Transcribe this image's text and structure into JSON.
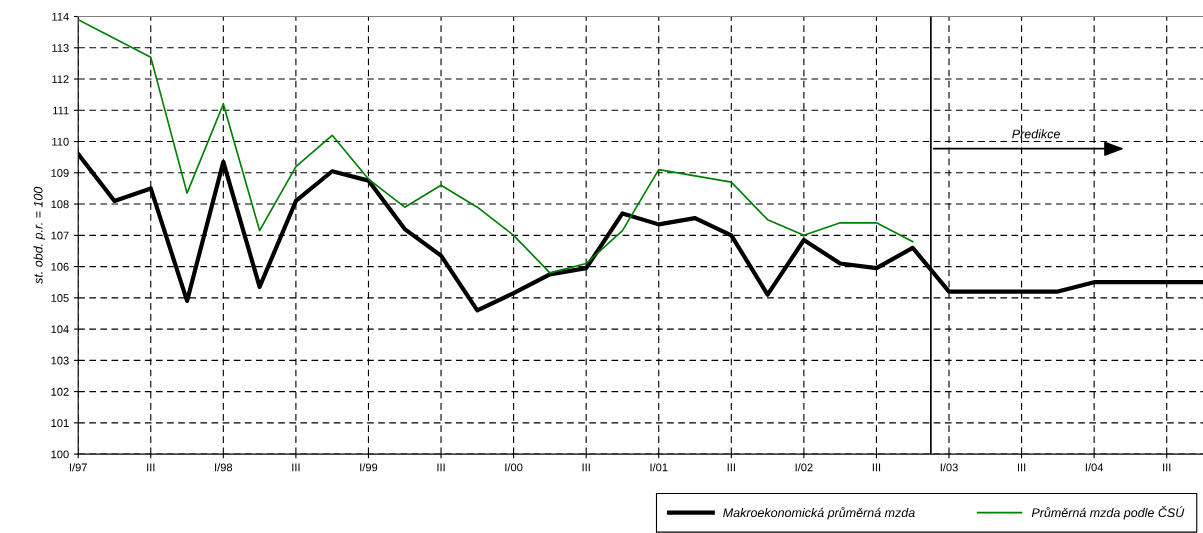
{
  "chart_data": {
    "type": "line",
    "ylabel": "st. obd. p.r. = 100",
    "categories": [
      "I/97",
      null,
      "III",
      null,
      "I/98",
      null,
      "III",
      null,
      "I/99",
      null,
      "III",
      null,
      "I/00",
      null,
      "III",
      null,
      "I/01",
      null,
      "III",
      null,
      "I/02",
      null,
      "III",
      null,
      "I/03",
      null,
      "III",
      null,
      "I/04",
      null,
      "III",
      null
    ],
    "series": [
      {
        "name": "Makroekonomická průměrná mzda",
        "color": "#000000",
        "values": [
          109.6,
          108.1,
          108.5,
          104.9,
          109.35,
          105.35,
          108.1,
          109.05,
          108.75,
          107.2,
          106.35,
          104.6,
          105.15,
          105.75,
          105.95,
          107.7,
          107.35,
          107.55,
          107.0,
          105.1,
          106.85,
          106.1,
          105.95,
          106.6,
          105.2,
          105.2,
          105.2,
          105.2,
          105.5,
          105.5,
          105.5,
          105.5
        ]
      },
      {
        "name": "Průměrná mzda podle ČSÚ",
        "color": "#008000",
        "values": [
          113.9,
          113.3,
          112.7,
          108.35,
          111.2,
          107.15,
          109.2,
          110.2,
          108.8,
          107.9,
          108.6,
          107.9,
          107.0,
          105.8,
          106.1,
          107.15,
          109.1,
          108.9,
          108.7,
          107.5,
          107.0,
          107.4,
          107.4,
          106.8,
          null,
          null,
          null,
          null,
          null,
          null,
          null,
          null
        ]
      }
    ],
    "ylim": [
      100,
      114
    ],
    "yticks": [
      100,
      101,
      102,
      103,
      104,
      105,
      106,
      107,
      108,
      109,
      110,
      111,
      112,
      113,
      114
    ],
    "annotations": [
      "Predikce"
    ],
    "grid": true,
    "legend": "bottom",
    "line_style": "solid",
    "marker": "none"
  }
}
